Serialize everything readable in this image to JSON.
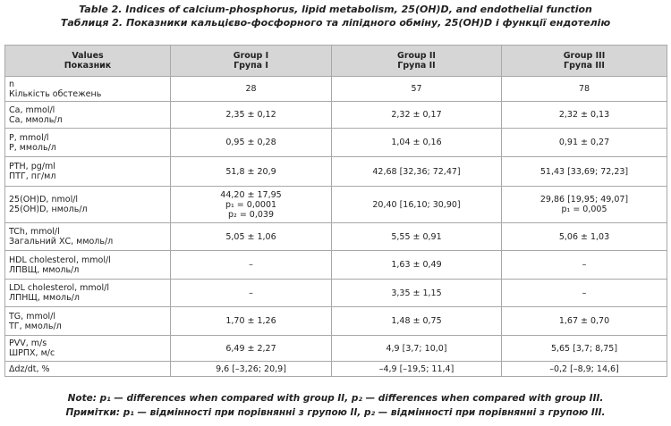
{
  "title": [
    "Table 2. Indices of calcium-phosphorus, lipid metabolism, 25(OH)D, and endothelial function",
    "Таблиця 2. Показники кальцієво-фосфорного та ліпідного обміну, 25(OH)D і функції ендотелію"
  ],
  "table": {
    "header": [
      [
        "Values",
        "Показник"
      ],
      [
        "Group I",
        "Група I"
      ],
      [
        "Group II",
        "Група II"
      ],
      [
        "Group III",
        "Група III"
      ]
    ],
    "rows": [
      [
        [
          "n",
          "Кількість обстежень"
        ],
        [
          "28"
        ],
        [
          "57"
        ],
        [
          "78"
        ]
      ],
      [
        [
          "Ca, mmol/l",
          "Ca, ммоль/л"
        ],
        [
          "2,35 ± 0,12"
        ],
        [
          "2,32 ± 0,17"
        ],
        [
          "2,32 ± 0,13"
        ]
      ],
      [
        [
          "P, mmol/l",
          "P, ммоль/л"
        ],
        [
          "0,95 ± 0,28"
        ],
        [
          "1,04 ± 0,16"
        ],
        [
          "0,91 ± 0,27"
        ]
      ],
      [
        [
          "PTH, pg/ml",
          "ПТГ, пг/мл"
        ],
        [
          "51,8 ± 20,9"
        ],
        [
          "42,68 [32,36; 72,47]"
        ],
        [
          "51,43 [33,69; 72,23]"
        ]
      ],
      [
        [
          "25(OH)D, nmol/l",
          "25(OH)D, нмоль/л"
        ],
        [
          "44,20 ± 17,95",
          "p₁ = 0,0001",
          "p₂ = 0,039"
        ],
        [
          "20,40 [16,10; 30,90]"
        ],
        [
          "29,86 [19,95; 49,07]",
          "p₁ = 0,005"
        ]
      ],
      [
        [
          "TCh, mmol/l",
          "Загальний ХС, ммоль/л"
        ],
        [
          "5,05 ± 1,06"
        ],
        [
          "5,55 ± 0,91"
        ],
        [
          "5,06 ± 1,03"
        ]
      ],
      [
        [
          "HDL cholesterol, mmol/l",
          "ЛПВЩ, ммоль/л"
        ],
        [
          "–"
        ],
        [
          "1,63 ± 0,49"
        ],
        [
          "–"
        ]
      ],
      [
        [
          "LDL cholesterol, mmol/l",
          "ЛПНЩ, ммоль/л"
        ],
        [
          "–"
        ],
        [
          "3,35 ± 1,15"
        ],
        [
          "–"
        ]
      ],
      [
        [
          "TG, mmol/l",
          "ТГ, ммоль/л"
        ],
        [
          "1,70 ± 1,26"
        ],
        [
          "1,48 ± 0,75"
        ],
        [
          "1,67 ± 0,70"
        ]
      ],
      [
        [
          "PVV, m/s",
          "ШРПХ, м/с"
        ],
        [
          "6,49 ± 2,27"
        ],
        [
          "4,9 [3,7; 10,0]"
        ],
        [
          "5,65 [3,7; 8,75]"
        ]
      ],
      [
        [
          "Δdz/dt, %"
        ],
        [
          "9,6 [–3,26; 20,9]"
        ],
        [
          "–4,9 [–19,5; 11,4]"
        ],
        [
          "–0,2 [–8,9; 14,6]"
        ]
      ]
    ]
  },
  "note": [
    "Note: p₁ — differences when compared with group II, p₂ — differences when compared with group III.",
    "Примітки: p₁ — відмінності при порівнянні з групою II, p₂ — відмінності при порівнянні з групою III."
  ]
}
